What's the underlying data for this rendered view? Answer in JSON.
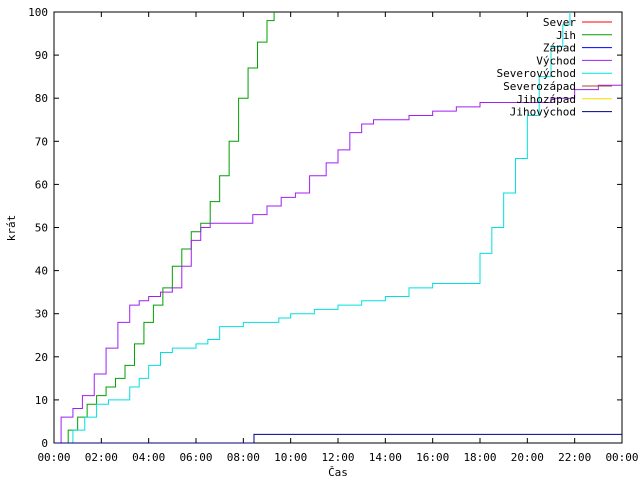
{
  "chart_data": {
    "type": "line",
    "title": "",
    "xlabel": "Čas",
    "ylabel": "krát",
    "ylim": [
      0,
      100
    ],
    "xlim_hours": [
      0,
      24
    ],
    "x_ticks": [
      "00:00",
      "02:00",
      "04:00",
      "06:00",
      "08:00",
      "10:00",
      "12:00",
      "14:00",
      "16:00",
      "18:00",
      "20:00",
      "22:00",
      "00:00"
    ],
    "y_ticks": [
      "0",
      "10",
      "20",
      "30",
      "40",
      "50",
      "60",
      "70",
      "80",
      "90",
      "100"
    ],
    "grid": false,
    "legend_position": "top-right",
    "series": [
      {
        "name": "Sever",
        "color": "#ff0000",
        "x": [],
        "y": []
      },
      {
        "name": "Jih",
        "color": "#00a000",
        "x": [
          0.3,
          0.6,
          1.0,
          1.4,
          1.8,
          2.2,
          2.6,
          3.0,
          3.4,
          3.8,
          4.2,
          4.6,
          5.0,
          5.4,
          5.8,
          6.2,
          6.6,
          7.0,
          7.4,
          7.8,
          8.2,
          8.6,
          9.0,
          9.3
        ],
        "y": [
          0,
          3,
          6,
          9,
          11,
          13,
          15,
          18,
          23,
          28,
          32,
          36,
          41,
          45,
          49,
          51,
          56,
          62,
          70,
          80,
          87,
          93,
          98,
          100
        ]
      },
      {
        "name": "Západ",
        "color": "#0000ff",
        "x": [],
        "y": []
      },
      {
        "name": "Východ",
        "color": "#a020f0",
        "x": [
          0.0,
          0.3,
          0.8,
          1.2,
          1.7,
          2.2,
          2.7,
          3.2,
          3.6,
          4.0,
          4.5,
          5.0,
          5.4,
          5.8,
          6.2,
          6.6,
          7.0,
          7.5,
          8.0,
          8.4,
          9.0,
          9.6,
          10.2,
          10.8,
          11.5,
          12.0,
          12.5,
          13.0,
          13.5,
          14.0,
          15.0,
          16.0,
          17.0,
          18.0,
          19.0,
          20.0,
          21.0,
          22.0,
          23.0,
          24.0
        ],
        "y": [
          0,
          6,
          8,
          11,
          16,
          22,
          28,
          32,
          33,
          34,
          35,
          36,
          41,
          47,
          50,
          51,
          51,
          51,
          51,
          53,
          55,
          57,
          58,
          62,
          65,
          68,
          72,
          74,
          75,
          75,
          76,
          77,
          78,
          79,
          79,
          79,
          80,
          82,
          83,
          83
        ]
      },
      {
        "name": "Severovýchod",
        "color": "#00e0e0",
        "x": [
          0.4,
          0.8,
          1.3,
          1.8,
          2.3,
          2.8,
          3.2,
          3.6,
          4.0,
          4.5,
          5.0,
          5.5,
          6.0,
          6.5,
          7.0,
          8.0,
          8.5,
          9.0,
          9.5,
          10.0,
          11.0,
          12.0,
          13.0,
          14.0,
          15.0,
          16.0,
          17.0,
          17.6,
          18.0,
          18.5,
          19.0,
          19.5,
          20.0,
          20.5,
          21.0,
          21.5,
          21.8
        ],
        "y": [
          0,
          3,
          6,
          9,
          10,
          10,
          13,
          15,
          18,
          21,
          22,
          22,
          23,
          24,
          27,
          28,
          28,
          28,
          29,
          30,
          31,
          32,
          33,
          34,
          36,
          37,
          37,
          37,
          44,
          50,
          58,
          66,
          76,
          85,
          92,
          97,
          100
        ]
      },
      {
        "name": "Severozápad",
        "color": "#a0522d",
        "x": [],
        "y": []
      },
      {
        "name": "Jihozápad",
        "color": "#ffd700",
        "x": [],
        "y": []
      },
      {
        "name": "Jihovýchod",
        "color": "#000080",
        "x": [
          0.0,
          8.4,
          8.45,
          24.0
        ],
        "y": [
          0,
          0,
          2,
          2
        ]
      }
    ]
  }
}
